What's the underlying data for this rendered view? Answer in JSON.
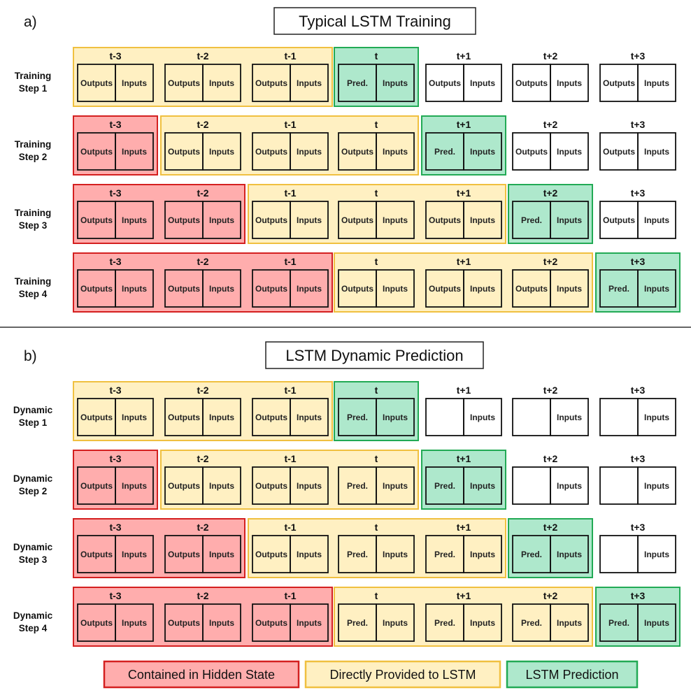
{
  "colors": {
    "hidden_fill": "#ffadad",
    "hidden_border": "#d42020",
    "provided_fill": "#fff0c2",
    "provided_border": "#f0c040",
    "prediction_fill": "#aee8cc",
    "prediction_border": "#22aa55",
    "cell_border": "#111111",
    "divider": "#333333"
  },
  "time_labels": [
    "t-3",
    "t-2",
    "t-1",
    "t",
    "t+1",
    "t+2",
    "t+3"
  ],
  "panels": [
    {
      "letter": "a)",
      "title": "Typical LSTM Training",
      "steps": [
        {
          "label": [
            "Training",
            "Step 1"
          ],
          "groups": [
            {
              "kind": "provided",
              "from": 0,
              "to": 2
            },
            {
              "kind": "prediction",
              "from": 3,
              "to": 3
            }
          ],
          "cells": [
            {
              "left": "Outputs",
              "right": "Inputs"
            },
            {
              "left": "Outputs",
              "right": "Inputs"
            },
            {
              "left": "Outputs",
              "right": "Inputs"
            },
            {
              "left": "Pred.",
              "right": "Inputs"
            },
            {
              "left": "Outputs",
              "right": "Inputs"
            },
            {
              "left": "Outputs",
              "right": "Inputs"
            },
            {
              "left": "Outputs",
              "right": "Inputs"
            }
          ]
        },
        {
          "label": [
            "Training",
            "Step 2"
          ],
          "groups": [
            {
              "kind": "hidden",
              "from": 0,
              "to": 0
            },
            {
              "kind": "provided",
              "from": 1,
              "to": 3
            },
            {
              "kind": "prediction",
              "from": 4,
              "to": 4
            }
          ],
          "cells": [
            {
              "left": "Outputs",
              "right": "Inputs"
            },
            {
              "left": "Outputs",
              "right": "Inputs"
            },
            {
              "left": "Outputs",
              "right": "Inputs"
            },
            {
              "left": "Outputs",
              "right": "Inputs"
            },
            {
              "left": "Pred.",
              "right": "Inputs"
            },
            {
              "left": "Outputs",
              "right": "Inputs"
            },
            {
              "left": "Outputs",
              "right": "Inputs"
            }
          ]
        },
        {
          "label": [
            "Training",
            "Step 3"
          ],
          "groups": [
            {
              "kind": "hidden",
              "from": 0,
              "to": 1
            },
            {
              "kind": "provided",
              "from": 2,
              "to": 4
            },
            {
              "kind": "prediction",
              "from": 5,
              "to": 5
            }
          ],
          "cells": [
            {
              "left": "Outputs",
              "right": "Inputs"
            },
            {
              "left": "Outputs",
              "right": "Inputs"
            },
            {
              "left": "Outputs",
              "right": "Inputs"
            },
            {
              "left": "Outputs",
              "right": "Inputs"
            },
            {
              "left": "Outputs",
              "right": "Inputs"
            },
            {
              "left": "Pred.",
              "right": "Inputs"
            },
            {
              "left": "Outputs",
              "right": "Inputs"
            }
          ]
        },
        {
          "label": [
            "Training",
            "Step 4"
          ],
          "groups": [
            {
              "kind": "hidden",
              "from": 0,
              "to": 2
            },
            {
              "kind": "provided",
              "from": 3,
              "to": 5
            },
            {
              "kind": "prediction",
              "from": 6,
              "to": 6
            }
          ],
          "cells": [
            {
              "left": "Outputs",
              "right": "Inputs"
            },
            {
              "left": "Outputs",
              "right": "Inputs"
            },
            {
              "left": "Outputs",
              "right": "Inputs"
            },
            {
              "left": "Outputs",
              "right": "Inputs"
            },
            {
              "left": "Outputs",
              "right": "Inputs"
            },
            {
              "left": "Outputs",
              "right": "Inputs"
            },
            {
              "left": "Pred.",
              "right": "Inputs"
            }
          ]
        }
      ]
    },
    {
      "letter": "b)",
      "title": "LSTM Dynamic Prediction",
      "steps": [
        {
          "label": [
            "Dynamic",
            "Step 1"
          ],
          "groups": [
            {
              "kind": "provided",
              "from": 0,
              "to": 2
            },
            {
              "kind": "prediction",
              "from": 3,
              "to": 3
            }
          ],
          "cells": [
            {
              "left": "Outputs",
              "right": "Inputs"
            },
            {
              "left": "Outputs",
              "right": "Inputs"
            },
            {
              "left": "Outputs",
              "right": "Inputs"
            },
            {
              "left": "Pred.",
              "right": "Inputs"
            },
            {
              "left": "",
              "right": "Inputs"
            },
            {
              "left": "",
              "right": "Inputs"
            },
            {
              "left": "",
              "right": "Inputs"
            }
          ]
        },
        {
          "label": [
            "Dynamic",
            "Step 2"
          ],
          "groups": [
            {
              "kind": "hidden",
              "from": 0,
              "to": 0
            },
            {
              "kind": "provided",
              "from": 1,
              "to": 3
            },
            {
              "kind": "prediction",
              "from": 4,
              "to": 4
            }
          ],
          "cells": [
            {
              "left": "Outputs",
              "right": "Inputs"
            },
            {
              "left": "Outputs",
              "right": "Inputs"
            },
            {
              "left": "Outputs",
              "right": "Inputs"
            },
            {
              "left": "Pred.",
              "right": "Inputs"
            },
            {
              "left": "Pred.",
              "right": "Inputs"
            },
            {
              "left": "",
              "right": "Inputs"
            },
            {
              "left": "",
              "right": "Inputs"
            }
          ]
        },
        {
          "label": [
            "Dynamic",
            "Step 3"
          ],
          "groups": [
            {
              "kind": "hidden",
              "from": 0,
              "to": 1
            },
            {
              "kind": "provided",
              "from": 2,
              "to": 4
            },
            {
              "kind": "prediction",
              "from": 5,
              "to": 5
            }
          ],
          "cells": [
            {
              "left": "Outputs",
              "right": "Inputs"
            },
            {
              "left": "Outputs",
              "right": "Inputs"
            },
            {
              "left": "Outputs",
              "right": "Inputs"
            },
            {
              "left": "Pred.",
              "right": "Inputs"
            },
            {
              "left": "Pred.",
              "right": "Inputs"
            },
            {
              "left": "Pred.",
              "right": "Inputs"
            },
            {
              "left": "",
              "right": "Inputs"
            }
          ]
        },
        {
          "label": [
            "Dynamic",
            "Step 4"
          ],
          "groups": [
            {
              "kind": "hidden",
              "from": 0,
              "to": 2
            },
            {
              "kind": "provided",
              "from": 3,
              "to": 5
            },
            {
              "kind": "prediction",
              "from": 6,
              "to": 6
            }
          ],
          "cells": [
            {
              "left": "Outputs",
              "right": "Inputs"
            },
            {
              "left": "Outputs",
              "right": "Inputs"
            },
            {
              "left": "Outputs",
              "right": "Inputs"
            },
            {
              "left": "Pred.",
              "right": "Inputs"
            },
            {
              "left": "Pred.",
              "right": "Inputs"
            },
            {
              "left": "Pred.",
              "right": "Inputs"
            },
            {
              "left": "Pred.",
              "right": "Inputs"
            }
          ]
        }
      ]
    }
  ],
  "legend": [
    {
      "kind": "hidden",
      "label": "Contained in Hidden State"
    },
    {
      "kind": "provided",
      "label": "Directly Provided to LSTM"
    },
    {
      "kind": "prediction",
      "label": "LSTM Prediction"
    }
  ]
}
